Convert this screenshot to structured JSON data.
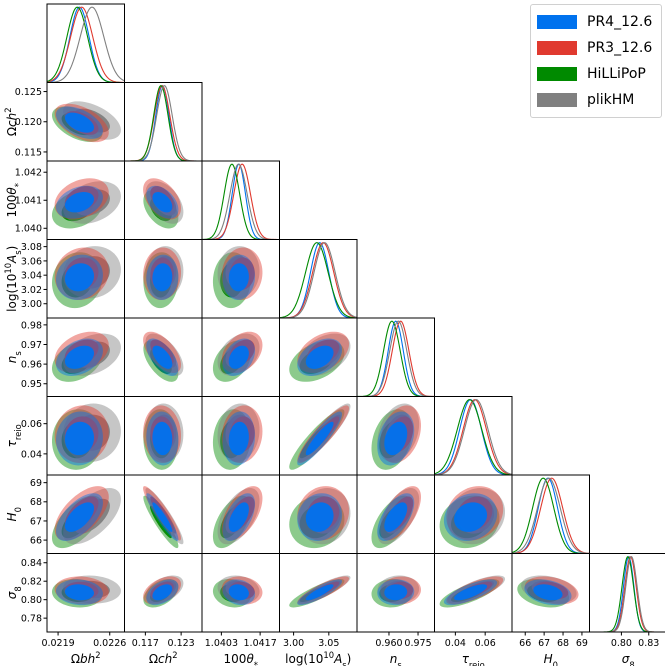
{
  "chart_data": {
    "type": "triangle-corner-plot",
    "parameters": [
      {
        "key": "omegabh2",
        "label": "Ωbh²",
        "html": "Ω<tspan font-style='italic'>b</tspan><tspan font-style='italic'>h</tspan><tspan baseline-shift='super' font-size='70%'>2</tspan>",
        "range": [
          0.02175,
          0.0228
        ],
        "ticks": [
          0.0219,
          0.0226
        ],
        "tick_labels": [
          "0.0219",
          "0.0226"
        ]
      },
      {
        "key": "omegach2",
        "label": "Ωch²",
        "html": "Ω<tspan font-style='italic'>c</tspan><tspan font-style='italic'>h</tspan><tspan baseline-shift='super' font-size='70%'>2</tspan>",
        "range": [
          0.1135,
          0.1265
        ],
        "ticks": [
          0.117,
          0.123
        ],
        "tick_labels": [
          "0.117",
          "0.123"
        ],
        "y_ticks": [
          0.115,
          0.12,
          0.125
        ],
        "y_tick_labels": [
          "0.115",
          "0.120",
          "0.125"
        ]
      },
      {
        "key": "theta",
        "label": "100θ*",
        "html": "100<tspan font-style='italic'>θ</tspan><tspan baseline-shift='sub' font-size='70%'>*</tspan>",
        "range": [
          1.0396,
          1.0424
        ],
        "ticks": [
          1.0403,
          1.0417
        ],
        "tick_labels": [
          "1.0403",
          "1.0417"
        ],
        "y_ticks": [
          1.04,
          1.041,
          1.042
        ],
        "y_tick_labels": [
          "1.040",
          "1.041",
          "1.042"
        ]
      },
      {
        "key": "logA",
        "label": "log(10¹⁰As)",
        "html": "log(10<tspan baseline-shift='super' font-size='70%'>10</tspan><tspan font-style='italic'>A</tspan><tspan baseline-shift='sub' font-size='70%'>s</tspan>)",
        "range": [
          2.98,
          3.09
        ],
        "ticks": [
          3.0,
          3.05
        ],
        "tick_labels": [
          "3.00",
          "3.05"
        ],
        "y_ticks": [
          3.0,
          3.02,
          3.04,
          3.06,
          3.08
        ],
        "y_tick_labels": [
          "3.00",
          "3.02",
          "3.04",
          "3.06",
          "3.08"
        ]
      },
      {
        "key": "ns",
        "label": "ns",
        "html": "<tspan font-style='italic'>n</tspan><tspan baseline-shift='sub' font-size='70%'>s</tspan>",
        "range": [
          0.9435,
          0.9835
        ],
        "ticks": [
          0.96,
          0.975
        ],
        "tick_labels": [
          "0.960",
          "0.975"
        ],
        "y_ticks": [
          0.95,
          0.96,
          0.97,
          0.98
        ],
        "y_tick_labels": [
          "0.95",
          "0.96",
          "0.97",
          "0.98"
        ]
      },
      {
        "key": "tau",
        "label": "τreio",
        "html": "<tspan font-style='italic'>τ</tspan><tspan baseline-shift='sub' font-size='70%'>reio</tspan>",
        "range": [
          0.026,
          0.078
        ],
        "ticks": [
          0.04,
          0.06
        ],
        "tick_labels": [
          "0.04",
          "0.06"
        ],
        "y_ticks": [
          0.04,
          0.06
        ],
        "y_tick_labels": [
          "0.04",
          "0.06"
        ]
      },
      {
        "key": "H0",
        "label": "H0",
        "html": "<tspan font-style='italic'>H</tspan><tspan baseline-shift='sub' font-size='70%'>0</tspan>",
        "range": [
          65.3,
          69.4
        ],
        "ticks": [
          66,
          67,
          68,
          69
        ],
        "tick_labels": [
          "66",
          "67",
          "68",
          "69"
        ],
        "y_ticks": [
          66,
          67,
          68,
          69
        ],
        "y_tick_labels": [
          "66",
          "67",
          "68",
          "69"
        ]
      },
      {
        "key": "sigma8",
        "label": "σ8",
        "html": "<tspan font-style='italic'>σ</tspan><tspan baseline-shift='sub' font-size='70%'>8</tspan>",
        "range": [
          0.765,
          0.85
        ],
        "ticks": [
          0.8,
          0.83
        ],
        "tick_labels": [
          "0.80",
          "0.83"
        ],
        "y_ticks": [
          0.78,
          0.8,
          0.82,
          0.84
        ],
        "y_tick_labels": [
          "0.78",
          "0.80",
          "0.82",
          "0.84"
        ]
      }
    ],
    "series": [
      {
        "name": "PR4_12.6",
        "color": "#0072ee",
        "means": [
          0.02219,
          0.11985,
          1.04093,
          3.037,
          0.9635,
          0.0502,
          67.2,
          0.808
        ],
        "sigmas": [
          0.00013,
          0.0011,
          0.00024,
          0.013,
          0.0039,
          0.0073,
          0.51,
          0.0057
        ]
      },
      {
        "name": "PR3_12.6",
        "color": "#e03a2f",
        "means": [
          0.02222,
          0.1198,
          1.04105,
          3.042,
          0.966,
          0.053,
          67.4,
          0.81
        ],
        "sigmas": [
          0.00015,
          0.0013,
          0.0003,
          0.015,
          0.0043,
          0.0078,
          0.58,
          0.0062
        ]
      },
      {
        "name": "HiLLiPoP",
        "color": "#008a00",
        "means": [
          0.02216,
          0.1196,
          1.04068,
          3.033,
          0.9615,
          0.0495,
          66.95,
          0.807
        ],
        "sigmas": [
          0.00014,
          0.0012,
          0.00028,
          0.016,
          0.0043,
          0.0082,
          0.56,
          0.0063
        ]
      },
      {
        "name": "plikHM",
        "color": "#808080",
        "means": [
          0.02236,
          0.1202,
          1.04092,
          3.044,
          0.9648,
          0.054,
          67.25,
          0.811
        ],
        "sigmas": [
          0.00016,
          0.0013,
          0.00031,
          0.015,
          0.0044,
          0.0079,
          0.6,
          0.0062
        ]
      }
    ],
    "correlations": {
      "1,0": -0.5,
      "2,0": 0.3,
      "2,1": -0.45,
      "3,0": 0.1,
      "3,1": 0.05,
      "3,2": 0.05,
      "4,0": 0.35,
      "4,1": -0.6,
      "4,2": 0.35,
      "4,3": 0.4,
      "5,0": 0.05,
      "5,1": -0.05,
      "5,2": 0.1,
      "5,3": 0.9,
      "5,4": 0.3,
      "6,0": 0.6,
      "6,1": -0.92,
      "6,2": 0.55,
      "6,3": 0.1,
      "6,4": 0.6,
      "6,5": 0.15,
      "7,0": -0.1,
      "7,1": 0.45,
      "7,2": -0.15,
      "7,3": 0.85,
      "7,4": 0.05,
      "7,5": 0.75,
      "7,6": -0.3
    },
    "draw_order": [
      2,
      3,
      1,
      0
    ],
    "legend_position": "top-right"
  }
}
